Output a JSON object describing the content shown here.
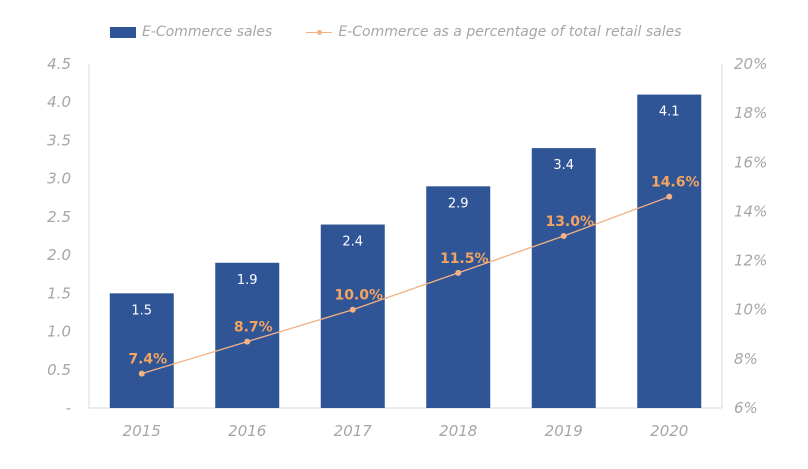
{
  "legend": {
    "bar_label": "E-Commerce sales",
    "line_label": "E-Commerce as a percentage of total retail sales"
  },
  "colors": {
    "bar": "#2f5597",
    "line": "#f4b183",
    "line_label": "#f4a460",
    "bar_label": "#ffffff",
    "axis_text": "#a6a6a6",
    "axis_line": "#d9d9d9"
  },
  "chart_data": {
    "type": "bar",
    "categories": [
      "2015",
      "2016",
      "2017",
      "2018",
      "2019",
      "2020"
    ],
    "series": [
      {
        "name": "E-Commerce sales",
        "type": "bar",
        "axis": "left",
        "values": [
          1.5,
          1.9,
          2.4,
          2.9,
          3.4,
          4.1
        ],
        "labels": [
          "1.5",
          "1.9",
          "2.4",
          "2.9",
          "3.4",
          "4.1"
        ]
      },
      {
        "name": "E-Commerce as a percentage of total retail sales",
        "type": "line",
        "axis": "right",
        "values": [
          7.4,
          8.7,
          10.0,
          11.5,
          13.0,
          14.6
        ],
        "labels": [
          "7.4%",
          "8.7%",
          "10.0%",
          "11.5%",
          "13.0%",
          "14.6%"
        ]
      }
    ],
    "y_left": {
      "ylim": [
        0,
        4.5
      ],
      "ticks": [
        0,
        0.5,
        1,
        1.5,
        2,
        2.5,
        3,
        3.5,
        4,
        4.5
      ],
      "tick_labels": [
        "-",
        "0.5",
        "1.0",
        "1.5",
        "2.0",
        "2.5",
        "3.0",
        "3.5",
        "4.0",
        "4.5"
      ]
    },
    "y_right": {
      "ylim": [
        6,
        20
      ],
      "ticks": [
        6,
        8,
        10,
        12,
        14,
        16,
        18,
        20
      ],
      "tick_labels": [
        "6%",
        "8%",
        "10%",
        "12%",
        "14%",
        "16%",
        "18%",
        "20%"
      ]
    },
    "grid": false,
    "legend_position": "top"
  }
}
